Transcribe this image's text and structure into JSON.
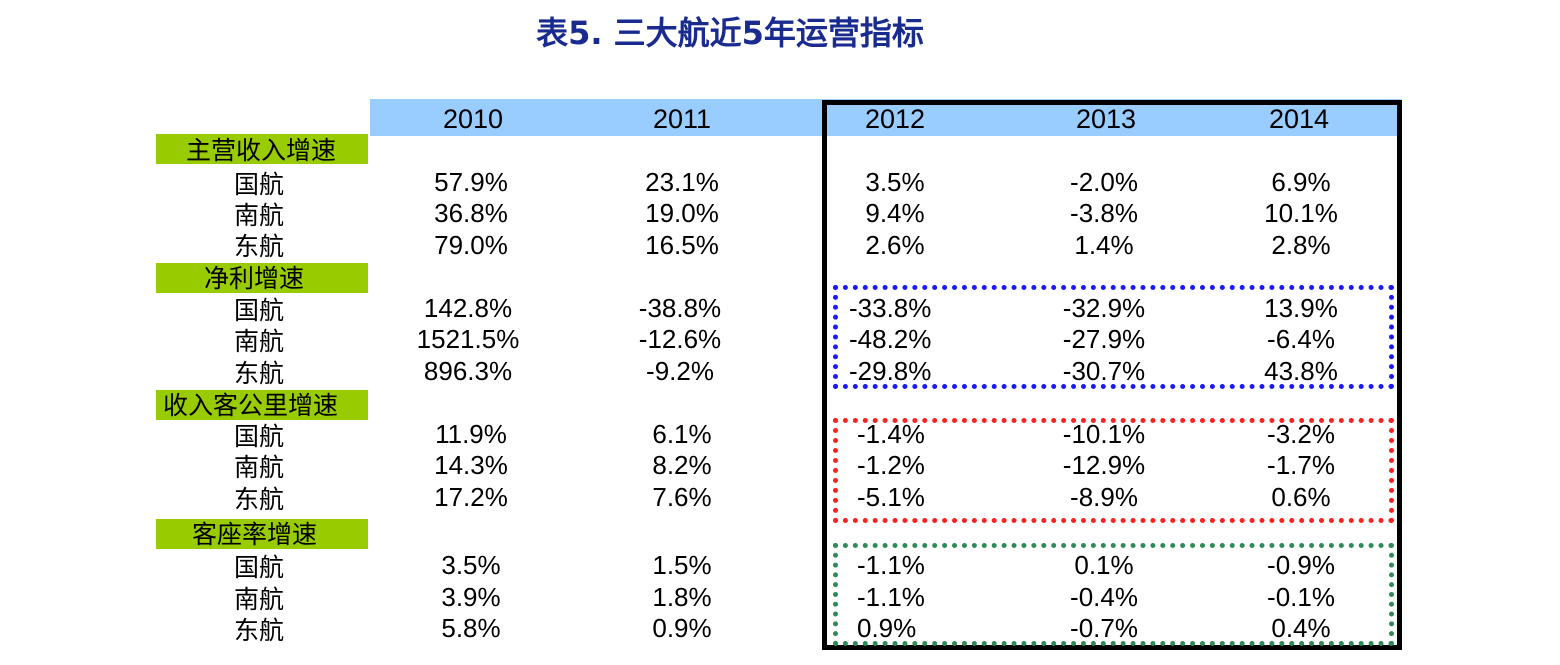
{
  "title": "表5. 三大航近5年运营指标",
  "years": [
    "2010",
    "2011",
    "2012",
    "2013",
    "2014"
  ],
  "sections": [
    {
      "label": "主营收入增速",
      "rows": [
        {
          "airline": "国航",
          "values": [
            "57.9%",
            "23.1%",
            "3.5%",
            "-2.0%",
            "6.9%"
          ]
        },
        {
          "airline": "南航",
          "values": [
            "36.8%",
            "19.0%",
            "9.4%",
            "-3.8%",
            "10.1%"
          ]
        },
        {
          "airline": "东航",
          "values": [
            "79.0%",
            "16.5%",
            "2.6%",
            "1.4%",
            "2.8%"
          ]
        }
      ]
    },
    {
      "label": "净利增速",
      "rows": [
        {
          "airline": "国航",
          "values": [
            "142.8%",
            "-38.8%",
            "-33.8%",
            "-32.9%",
            "13.9%"
          ]
        },
        {
          "airline": "南航",
          "values": [
            "1521.5%",
            "-12.6%",
            "-48.2%",
            "-27.9%",
            "-6.4%"
          ]
        },
        {
          "airline": "东航",
          "values": [
            "896.3%",
            "-9.2%",
            "-29.8%",
            "-30.7%",
            "43.8%"
          ]
        }
      ]
    },
    {
      "label": "收入客公里增速",
      "rows": [
        {
          "airline": "国航",
          "values": [
            "11.9%",
            "6.1%",
            "-1.4%",
            "-10.1%",
            "-3.2%"
          ]
        },
        {
          "airline": "南航",
          "values": [
            "14.3%",
            "8.2%",
            "-1.2%",
            "-12.9%",
            "-1.7%"
          ]
        },
        {
          "airline": "东航",
          "values": [
            "17.2%",
            "7.6%",
            "-5.1%",
            "-8.9%",
            "0.6%"
          ]
        }
      ]
    },
    {
      "label": "客座率增速",
      "rows": [
        {
          "airline": "国航",
          "values": [
            "3.5%",
            "1.5%",
            "-1.1%",
            "0.1%",
            "-0.9%"
          ]
        },
        {
          "airline": "南航",
          "values": [
            "3.9%",
            "1.8%",
            "-1.1%",
            "-0.4%",
            "-0.1%"
          ]
        },
        {
          "airline": "东航",
          "values": [
            "5.8%",
            "0.9%",
            "0.9%",
            "-0.7%",
            "0.4%"
          ]
        }
      ]
    }
  ],
  "colors": {
    "title": "#1a2b8f",
    "header_band": "#99ccff",
    "section_bar": "#99cc00",
    "net_profit_box": "#1a1aff",
    "rpk_box": "#ff2020",
    "load_factor_box": "#2e8b57"
  }
}
